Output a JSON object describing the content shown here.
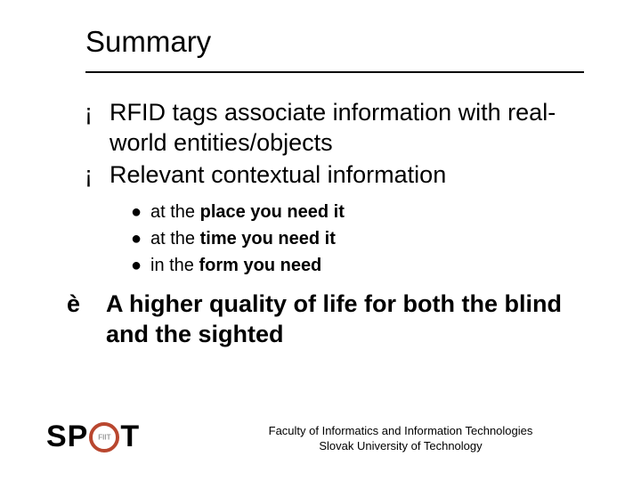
{
  "title": "Summary",
  "bullets": {
    "marker": "¡",
    "items": [
      {
        "text": "RFID tags associate information with real-world entities/objects"
      },
      {
        "text": "Relevant contextual information"
      }
    ]
  },
  "sub_bullets": {
    "marker": "●",
    "items": [
      {
        "prefix": "at the ",
        "bold": "place you need it"
      },
      {
        "prefix": "at the ",
        "bold": "time you need it"
      },
      {
        "prefix": "in the ",
        "bold": "form you need"
      }
    ]
  },
  "conclusion": {
    "arrow": "è",
    "text": "A higher quality of life for both the blind and the sighted"
  },
  "logo": {
    "sp": "SP",
    "t": "T",
    "inner": "FIIT"
  },
  "footer": {
    "line1": "Faculty of Informatics and Information Technologies",
    "line2": "Slovak University of Technology"
  },
  "styling": {
    "slide_size": [
      720,
      540
    ],
    "background": "#ffffff",
    "text_color": "#000000",
    "title_fontsize": 33,
    "body_fontsize": 27,
    "sub_fontsize": 20,
    "footer_fontsize": 13,
    "underline_color": "#000000",
    "logo_ring_color": "#b9472f",
    "logo_inner_color": "#9a9a9a",
    "font_family": "Verdana"
  }
}
